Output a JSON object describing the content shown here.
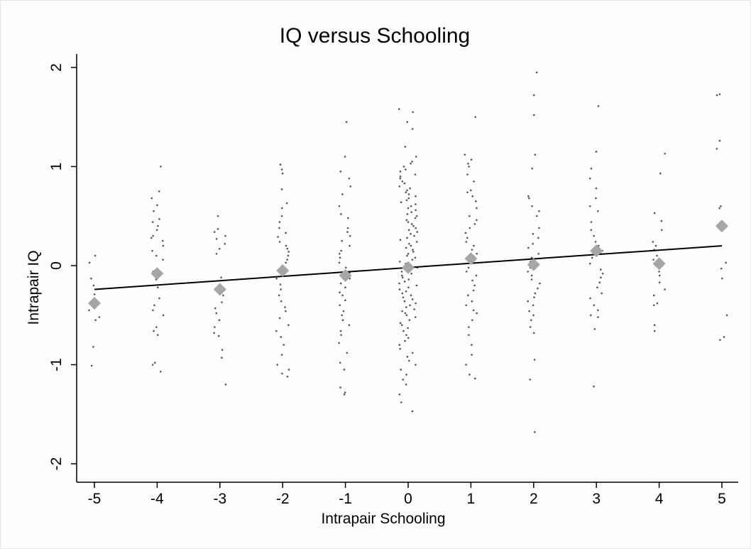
{
  "chart_data": {
    "type": "scatter",
    "title": "IQ versus Schooling",
    "xlabel": "Intrapair Schooling",
    "ylabel": "Intrapair IQ",
    "xlim": [
      -5.3,
      5.3
    ],
    "ylim": [
      -2.2,
      2.1
    ],
    "x_ticks": [
      -5,
      -4,
      -3,
      -2,
      -1,
      0,
      1,
      2,
      3,
      4,
      5
    ],
    "y_ticks": [
      -2,
      -1,
      0,
      1,
      2
    ],
    "grid": false,
    "legend": "none",
    "colors": {
      "points": "#555555",
      "means": "#a6a6a6",
      "fit": "#000000"
    },
    "means": {
      "x": [
        -5,
        -4,
        -3,
        -2,
        -1,
        0,
        1,
        2,
        3,
        4,
        5
      ],
      "y": [
        -0.38,
        -0.08,
        -0.24,
        -0.05,
        -0.1,
        -0.02,
        0.07,
        0.01,
        0.15,
        0.02,
        0.4
      ]
    },
    "fit_line": {
      "x": [
        -5,
        5
      ],
      "y": [
        -0.24,
        0.2
      ]
    },
    "points": [
      {
        "x": -5,
        "y": [
          -0.38,
          0.1,
          0.03,
          -0.13,
          -0.2,
          -0.29,
          -0.45,
          -0.52,
          -0.55,
          -0.82,
          -1.01
        ]
      },
      {
        "x": -4,
        "y": [
          1.0,
          0.75,
          0.68,
          0.61,
          0.55,
          0.47,
          0.44,
          0.4,
          0.36,
          0.3,
          0.28,
          0.25,
          0.2,
          0.15,
          0.1,
          0.06,
          -0.06,
          -0.14,
          -0.22,
          -0.33,
          -0.4,
          -0.45,
          -0.5,
          -0.62,
          -0.66,
          -0.7,
          -0.98,
          -1.0,
          -1.07
        ]
      },
      {
        "x": -3,
        "y": [
          0.5,
          0.37,
          0.34,
          0.3,
          0.27,
          0.22,
          0.17,
          0.12,
          -0.12,
          -0.2,
          -0.3,
          -0.37,
          -0.43,
          -0.48,
          -0.55,
          -0.62,
          -0.68,
          -0.71,
          -0.85,
          -0.93,
          -1.2
        ]
      },
      {
        "x": -2,
        "y": [
          1.02,
          0.97,
          0.93,
          0.77,
          0.63,
          0.58,
          0.5,
          0.44,
          0.38,
          0.33,
          0.29,
          0.24,
          0.2,
          0.17,
          0.14,
          0.1,
          0.06,
          0.03,
          -0.03,
          -0.08,
          -0.13,
          -0.19,
          -0.24,
          -0.3,
          -0.36,
          -0.42,
          -0.46,
          -0.53,
          -0.6,
          -0.66,
          -0.72,
          -0.8,
          -0.9,
          -1.0,
          -1.05,
          -1.09,
          -1.12
        ]
      },
      {
        "x": -1,
        "y": [
          1.45,
          1.1,
          0.95,
          0.88,
          0.8,
          0.72,
          0.6,
          0.52,
          0.48,
          0.38,
          0.34,
          0.3,
          0.25,
          0.2,
          0.15,
          0.12,
          0.08,
          0.03,
          -0.02,
          -0.07,
          -0.13,
          -0.18,
          -0.22,
          -0.27,
          -0.3,
          -0.35,
          -0.4,
          -0.46,
          -0.5,
          -0.55,
          -0.6,
          -0.66,
          -0.7,
          -0.78,
          -0.88,
          -0.98,
          -1.05,
          -1.23,
          -1.28,
          -1.3
        ]
      },
      {
        "x": 0,
        "y": [
          1.58,
          1.55,
          1.45,
          1.38,
          1.2,
          1.1,
          1.05,
          1.03,
          1.0,
          0.97,
          0.95,
          0.92,
          0.9,
          0.88,
          0.85,
          0.83,
          0.8,
          0.78,
          0.76,
          0.74,
          0.72,
          0.7,
          0.68,
          0.66,
          0.64,
          0.62,
          0.6,
          0.58,
          0.56,
          0.54,
          0.52,
          0.5,
          0.48,
          0.46,
          0.44,
          0.42,
          0.4,
          0.38,
          0.36,
          0.34,
          0.32,
          0.3,
          0.28,
          0.26,
          0.24,
          0.22,
          0.2,
          0.18,
          0.16,
          0.14,
          0.12,
          0.1,
          0.08,
          0.06,
          0.04,
          0.02,
          0.0,
          -0.02,
          -0.04,
          -0.06,
          -0.08,
          -0.1,
          -0.12,
          -0.14,
          -0.16,
          -0.18,
          -0.2,
          -0.22,
          -0.24,
          -0.26,
          -0.28,
          -0.3,
          -0.32,
          -0.34,
          -0.36,
          -0.38,
          -0.4,
          -0.42,
          -0.44,
          -0.46,
          -0.48,
          -0.5,
          -0.52,
          -0.55,
          -0.58,
          -0.6,
          -0.63,
          -0.66,
          -0.7,
          -0.73,
          -0.76,
          -0.8,
          -0.84,
          -0.88,
          -0.92,
          -0.96,
          -1.0,
          -1.05,
          -1.1,
          -1.15,
          -1.2,
          -1.3,
          -1.38,
          -1.47
        ]
      },
      {
        "x": 1,
        "y": [
          1.5,
          1.12,
          1.07,
          1.03,
          1.0,
          0.92,
          0.85,
          0.76,
          0.74,
          0.7,
          0.65,
          0.58,
          0.5,
          0.46,
          0.42,
          0.38,
          0.33,
          0.28,
          0.24,
          0.2,
          0.16,
          0.12,
          0.08,
          0.04,
          -0.02,
          -0.06,
          -0.1,
          -0.15,
          -0.2,
          -0.25,
          -0.3,
          -0.36,
          -0.4,
          -0.45,
          -0.48,
          -0.55,
          -0.62,
          -0.7,
          -0.8,
          -0.9,
          -1.0,
          -1.1,
          -1.14
        ]
      },
      {
        "x": 2,
        "y": [
          1.95,
          1.72,
          1.52,
          1.12,
          0.98,
          0.7,
          0.68,
          0.6,
          0.55,
          0.5,
          0.38,
          0.32,
          0.28,
          0.22,
          0.18,
          0.12,
          0.08,
          0.04,
          -0.02,
          -0.06,
          -0.1,
          -0.14,
          -0.18,
          -0.23,
          -0.28,
          -0.32,
          -0.36,
          -0.4,
          -0.46,
          -0.5,
          -0.55,
          -0.62,
          -0.68,
          -0.95,
          -1.15,
          -1.68
        ]
      },
      {
        "x": 3,
        "y": [
          1.61,
          1.15,
          0.98,
          0.88,
          0.78,
          0.68,
          0.6,
          0.55,
          0.44,
          0.36,
          0.3,
          0.24,
          0.2,
          0.15,
          0.12,
          0.08,
          0.02,
          -0.04,
          -0.08,
          -0.12,
          -0.17,
          -0.22,
          -0.28,
          -0.33,
          -0.4,
          -0.45,
          -0.5,
          -0.52,
          -0.64,
          -1.22
        ]
      },
      {
        "x": 4,
        "y": [
          1.13,
          0.93,
          0.53,
          0.45,
          0.36,
          0.24,
          0.2,
          0.16,
          0.1,
          0.06,
          0.0,
          -0.06,
          -0.1,
          -0.17,
          -0.24,
          -0.3,
          -0.38,
          -0.4,
          -0.6,
          -0.66
        ]
      },
      {
        "x": 5,
        "y": [
          1.73,
          1.72,
          1.26,
          1.18,
          0.6,
          0.58,
          0.03,
          -0.03,
          -0.13,
          -0.5,
          -0.72,
          -0.75
        ]
      }
    ]
  }
}
